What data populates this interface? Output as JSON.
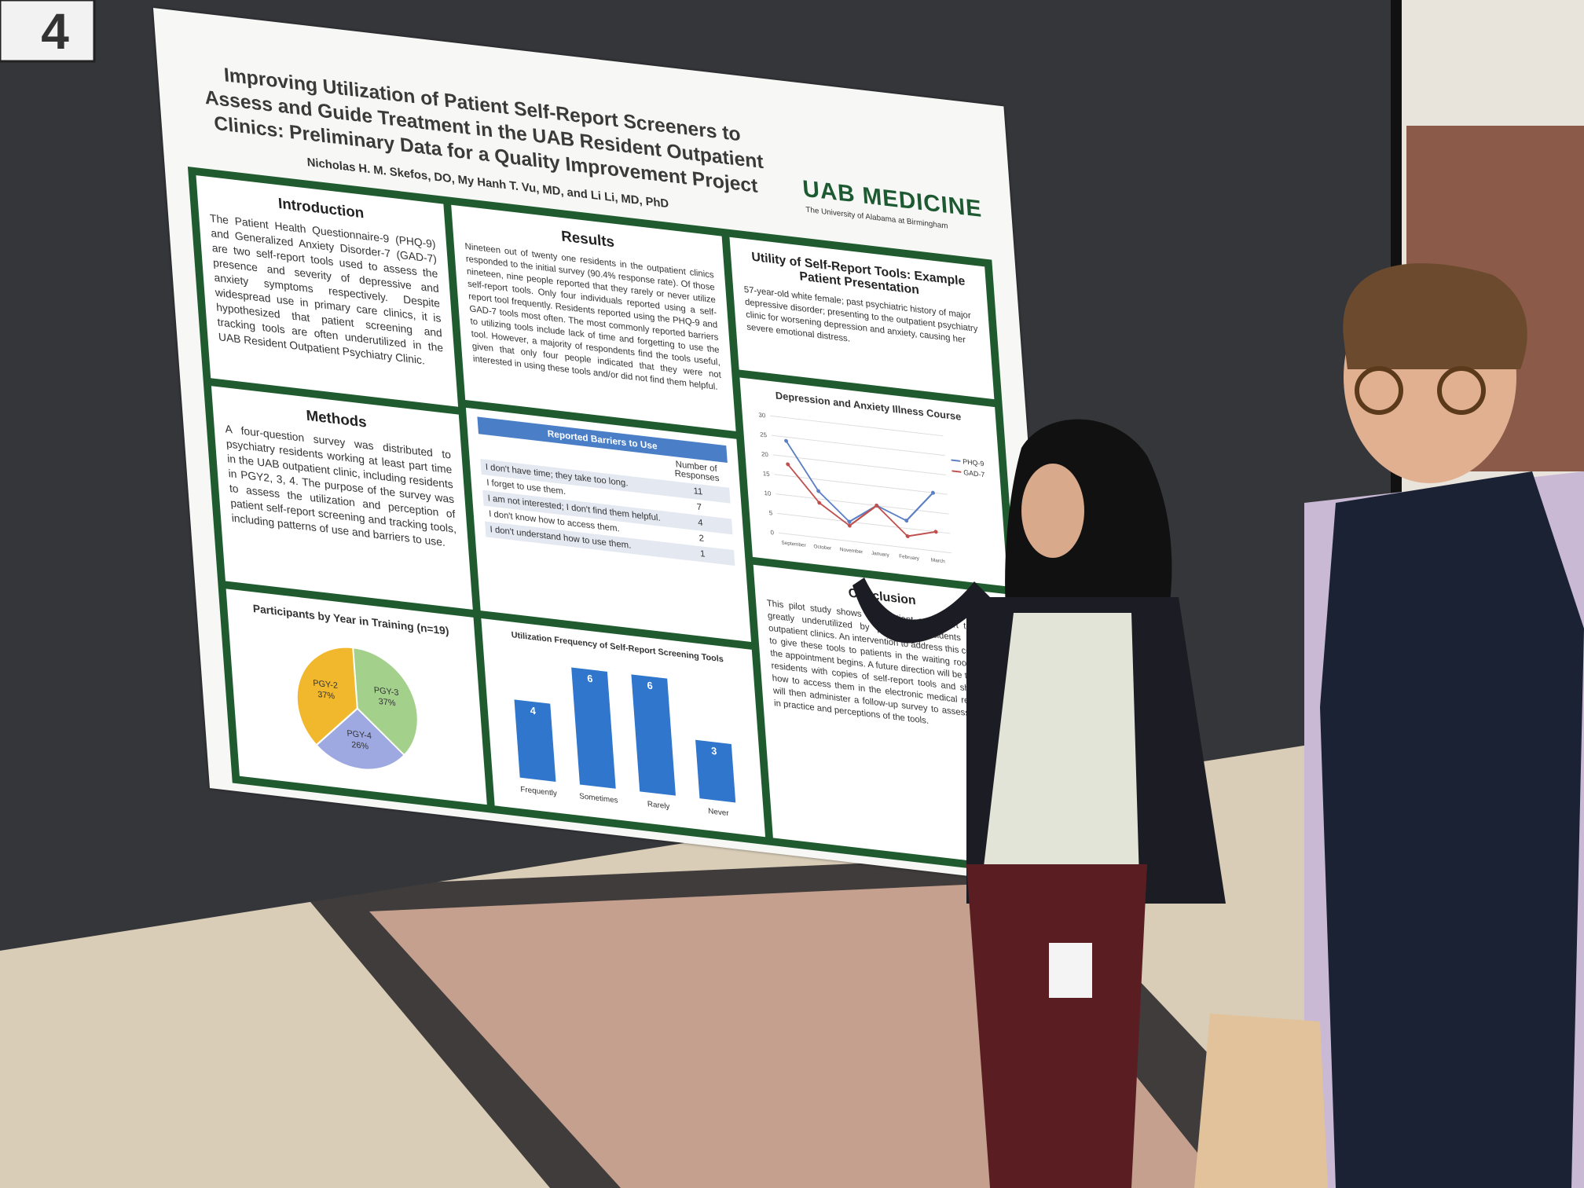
{
  "sign": "4",
  "poster": {
    "title": "Improving Utilization of Patient Self-Report Screeners to Assess and Guide Treatment in the UAB Resident Outpatient Clinics: Preliminary Data for a Quality Improvement Project",
    "authors": "Nicholas H. M. Skefos, DO, My Hanh T. Vu, MD, and Li Li, MD, PhD",
    "logo": "UAB MEDICINE",
    "logo_subtitle": "The University of Alabama at Birmingham",
    "introduction": {
      "heading": "Introduction",
      "text": "The Patient Health Questionnaire-9 (PHQ-9) and Generalized Anxiety Disorder-7 (GAD-7) are two self-report tools used to assess the presence and severity of depressive and anxiety symptoms respectively. Despite widespread use in primary care clinics, it is hypothesized that patient screening and tracking tools are often underutilized in the UAB Resident Outpatient Psychiatry Clinic."
    },
    "methods": {
      "heading": "Methods",
      "text": "A four-question survey was distributed to psychiatry residents working at least part time in the UAB outpatient clinic, including residents in PGY2, 3, 4. The purpose of the survey was to assess the utilization and perception of patient self-report screening and tracking tools, including patterns of use and barriers to use."
    },
    "results": {
      "heading": "Results",
      "text": "Nineteen out of twenty one residents in the outpatient clinics responded to the initial survey (90.4% response rate). Of those nineteen, nine people reported that they rarely or never utilize self-report tools. Only four individuals reported using a self-report tool frequently. Residents reported using the PHQ-9 and GAD-7 tools most often. The most commonly reported barriers to utilizing tools include lack of time and forgetting to use the tool. However, a majority of respondents find the tools useful, given that only four people indicated that they were not interested in using these tools and/or did not find them helpful."
    },
    "utility": {
      "heading": "Utility of Self-Report Tools: Example Patient Presentation",
      "text": "57-year-old white female; past psychiatric history of major depressive disorder; presenting to the outpatient psychiatry clinic for worsening depression and anxiety, causing her severe emotional distress."
    },
    "conclusion": {
      "heading": "Conclusion",
      "text": "This pilot study shows that patient self-report tools are greatly underutilized by psychiatry residents in UAB outpatient clinics. An intervention to address this concern is to give these tools to patients in the waiting room before the appointment begins. A future direction will be to provide residents with copies of self-report tools and show them how to access them in the electronic medical record. We will then administer a follow-up survey to assess changes in practice and perceptions of the tools."
    },
    "barriers_table": {
      "title": "Reported Barriers to Use",
      "header": "Number of Responses",
      "rows": [
        [
          "I don't have time; they take too long.",
          11
        ],
        [
          "I forget to use them.",
          7
        ],
        [
          "I am not interested; I don't find them helpful.",
          4
        ],
        [
          "I don't know how to access them.",
          2
        ],
        [
          "I don't understand how to use them.",
          1
        ]
      ]
    }
  },
  "chart_data": [
    {
      "type": "pie",
      "title": "Participants by Year in Training (n=19)",
      "categories": [
        "PGY-3",
        "PGY-4",
        "PGY-2"
      ],
      "values": [
        37,
        26,
        37
      ],
      "value_labels": [
        "37%",
        "26%",
        "37%"
      ],
      "colors": [
        "#a3d18c",
        "#9ea9e2",
        "#f1b82d"
      ]
    },
    {
      "type": "bar",
      "title": "Utilization Frequency of Self-Report Screening Tools",
      "categories": [
        "Frequently",
        "Sometimes",
        "Rarely",
        "Never"
      ],
      "values": [
        4,
        6,
        6,
        3
      ],
      "color": "#2f76cc"
    },
    {
      "type": "line",
      "title": "Depression and Anxiety Illness Course",
      "categories": [
        "September",
        "October",
        "November",
        "January",
        "February",
        "March"
      ],
      "series": [
        {
          "name": "PHQ-9",
          "color": "#5b7fc4",
          "values": [
            24,
            12,
            5,
            10,
            7,
            15
          ]
        },
        {
          "name": "GAD-7",
          "color": "#c0504d",
          "values": [
            18,
            9,
            4,
            10,
            3,
            5
          ]
        }
      ],
      "ylim": [
        0,
        30
      ],
      "yticks": [
        0,
        5,
        10,
        15,
        20,
        25,
        30
      ],
      "grid": true,
      "legend": "right"
    }
  ]
}
